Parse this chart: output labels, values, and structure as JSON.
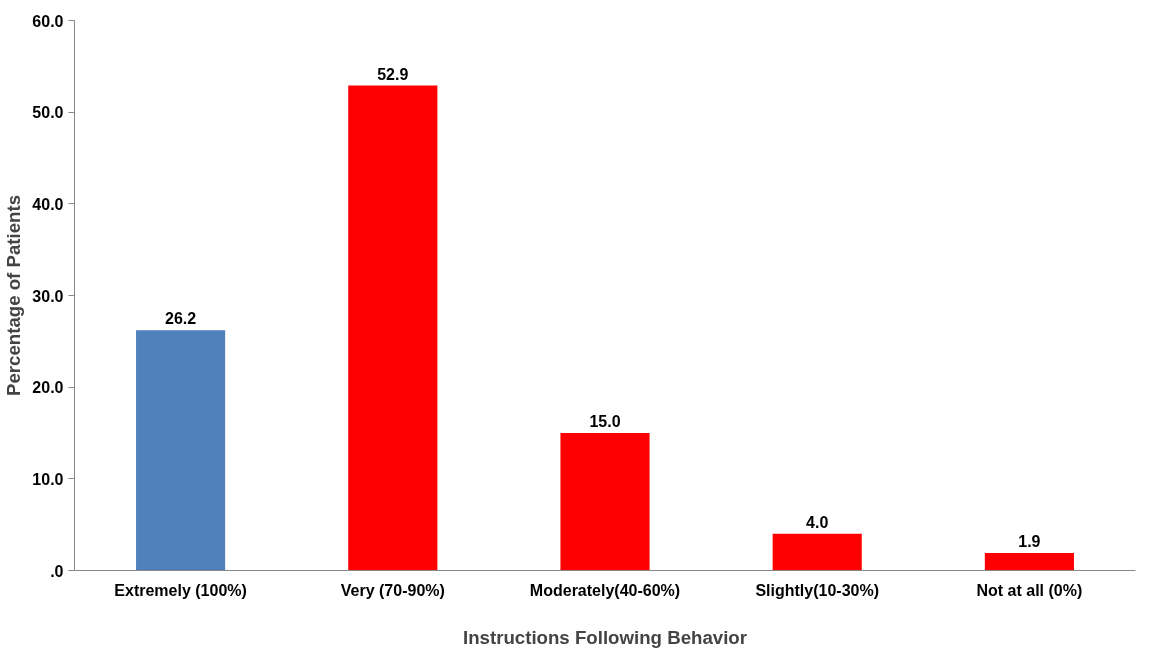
{
  "chart_data": {
    "type": "bar",
    "xlabel": "Instructions Following Behavior",
    "ylabel": "Percentage of Patients",
    "categories": [
      "Extremely (100%)",
      "Very (70-90%)",
      "Moderately(40-60%)",
      "Slightly(10-30%)",
      "Not at all (0%)"
    ],
    "values": [
      26.2,
      52.9,
      15.0,
      4.0,
      1.9
    ],
    "colors": [
      "#4f81bd",
      "#ff0000",
      "#ff0000",
      "#ff0000",
      "#ff0000"
    ],
    "value_labels": [
      "26.2",
      "52.9",
      "15.0",
      "4.0",
      "1.9"
    ],
    "ylim": [
      0,
      60
    ],
    "yticks": [
      {
        "value": 0,
        "label": ".0"
      },
      {
        "value": 10,
        "label": "10.0"
      },
      {
        "value": 20,
        "label": "20.0"
      },
      {
        "value": 30,
        "label": "30.0"
      },
      {
        "value": 40,
        "label": "40.0"
      },
      {
        "value": 50,
        "label": "50.0"
      },
      {
        "value": 60,
        "label": "60.0"
      }
    ],
    "grid": false
  }
}
